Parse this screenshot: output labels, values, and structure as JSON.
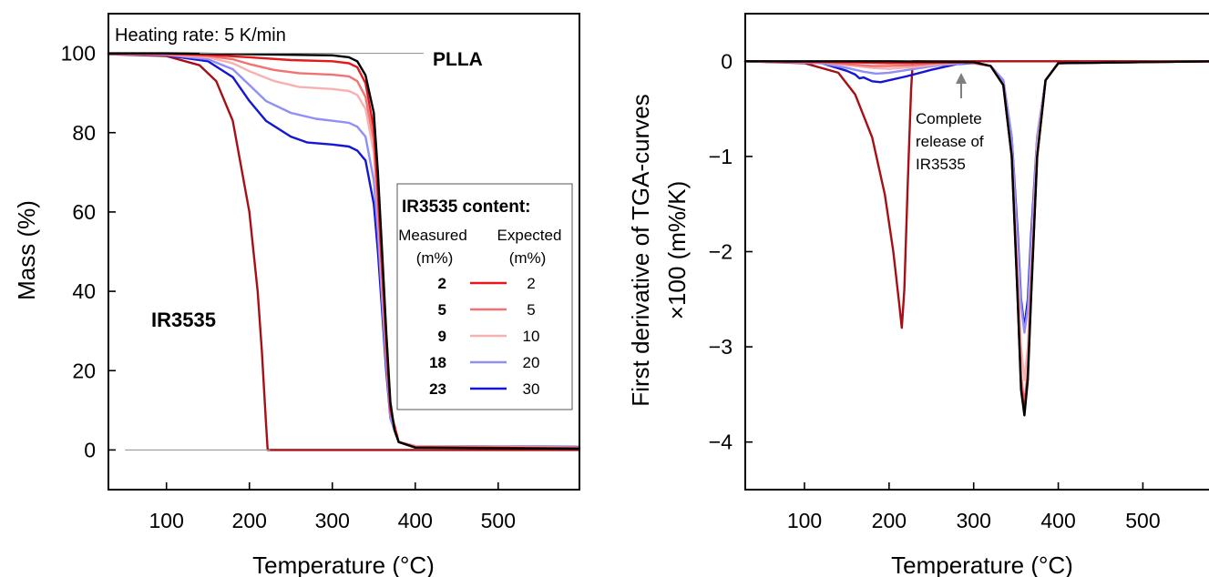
{
  "colors": {
    "PLLA": "#000000",
    "IR3535": "#a50f15",
    "2": "#e31a1c",
    "5": "#f27272",
    "9": "#f7b1b1",
    "18": "#8f8ff5",
    "23": "#1515d4",
    "guide": "#999999",
    "arrow": "#7f7f7f"
  },
  "chart_data": [
    {
      "type": "line",
      "title": "",
      "xlabel": "Temperature (°C)",
      "ylabel": "Mass (%)",
      "xlim": [
        30,
        598
      ],
      "ylim": [
        -10,
        110
      ],
      "xticks": [
        100,
        200,
        300,
        400,
        500
      ],
      "yticks": [
        0,
        20,
        40,
        60,
        80,
        100
      ],
      "annotations": {
        "heating_rate": "Heating rate: 5 K/min",
        "plla_label": "PLLA",
        "ir3535_label": "IR3535"
      },
      "legend": {
        "title": "IR3535 content:",
        "col1_header": "Measured",
        "col1_unit": "(m%)",
        "col2_header": "Expected",
        "col2_unit": "(m%)",
        "placement": "right",
        "entries": [
          {
            "key": "2",
            "measured": "2",
            "expected": "2"
          },
          {
            "key": "5",
            "measured": "5",
            "expected": "5"
          },
          {
            "key": "9",
            "measured": "9",
            "expected": "10"
          },
          {
            "key": "18",
            "measured": "18",
            "expected": "20"
          },
          {
            "key": "23",
            "measured": "23",
            "expected": "30"
          }
        ]
      },
      "series": [
        {
          "key": "IR3535",
          "x": [
            30,
            100,
            140,
            160,
            180,
            200,
            210,
            215,
            220,
            222,
            225,
            300,
            400,
            598
          ],
          "y": [
            99.8,
            99.3,
            97,
            93,
            83,
            60,
            40,
            25,
            7,
            0,
            0,
            0,
            0,
            0
          ]
        },
        {
          "key": "23",
          "x": [
            30,
            100,
            150,
            180,
            200,
            220,
            250,
            270,
            300,
            320,
            330,
            340,
            350,
            355,
            360,
            365,
            370,
            380,
            400,
            598
          ],
          "y": [
            99.8,
            99.5,
            98,
            94,
            88,
            83,
            79,
            77.5,
            77,
            76.5,
            75.5,
            73,
            62,
            50,
            35,
            20,
            8,
            2,
            1,
            0.8
          ]
        },
        {
          "key": "18",
          "x": [
            30,
            100,
            150,
            180,
            200,
            220,
            250,
            280,
            300,
            320,
            330,
            340,
            350,
            355,
            360,
            365,
            370,
            380,
            400,
            598
          ],
          "y": [
            99.8,
            99.6,
            98.5,
            96,
            92,
            88,
            85,
            83.5,
            83,
            82.5,
            81.5,
            79,
            68,
            55,
            38,
            22,
            8,
            2,
            1,
            0.7
          ]
        },
        {
          "key": "9",
          "x": [
            30,
            100,
            150,
            180,
            200,
            230,
            260,
            300,
            320,
            330,
            340,
            350,
            355,
            360,
            365,
            370,
            380,
            400,
            598
          ],
          "y": [
            99.9,
            99.7,
            99,
            97.5,
            95.5,
            93,
            91.5,
            91,
            90.5,
            89.5,
            86,
            75,
            60,
            42,
            25,
            10,
            2,
            1,
            0.6
          ]
        },
        {
          "key": "5",
          "x": [
            30,
            100,
            150,
            180,
            200,
            230,
            260,
            300,
            320,
            330,
            340,
            350,
            355,
            360,
            365,
            370,
            380,
            400,
            598
          ],
          "y": [
            99.9,
            99.8,
            99.3,
            98.5,
            97.3,
            95.8,
            95,
            94.6,
            94.2,
            93,
            89,
            78,
            62,
            44,
            26,
            10,
            2,
            0.8,
            0.5
          ]
        },
        {
          "key": "2",
          "x": [
            30,
            100,
            150,
            200,
            250,
            300,
            320,
            330,
            340,
            350,
            355,
            360,
            365,
            370,
            380,
            400,
            598
          ],
          "y": [
            99.9,
            99.9,
            99.6,
            99,
            98.3,
            98,
            97.5,
            96.5,
            92.5,
            81,
            65,
            46,
            27,
            10,
            2,
            0.7,
            0.4
          ]
        },
        {
          "key": "PLLA",
          "x": [
            30,
            100,
            200,
            300,
            320,
            330,
            340,
            350,
            355,
            360,
            365,
            370,
            375,
            380,
            400,
            598
          ],
          "y": [
            100,
            100,
            99.8,
            99.5,
            99,
            98,
            94.5,
            85,
            70,
            50,
            30,
            12,
            5,
            2,
            0.6,
            0.3
          ]
        }
      ]
    },
    {
      "type": "line",
      "title": "",
      "xlabel": "Temperature (°C)",
      "ylabel": "First derivative of TGA-curves",
      "ylabel2": "×100 (m%/K)",
      "xlim": [
        30,
        590
      ],
      "ylim": [
        -4.5,
        0.5
      ],
      "xticks": [
        100,
        200,
        300,
        400,
        500
      ],
      "yticks": [
        0,
        -1,
        -2,
        -3,
        -4
      ],
      "ytick_labels": [
        "0",
        "−1",
        "−2",
        "−3",
        "−4"
      ],
      "annotations": {
        "release_line1": "Complete",
        "release_line2": "release of",
        "release_line3": "IR3535"
      },
      "series": [
        {
          "key": "IR3535",
          "x": [
            30,
            100,
            140,
            160,
            180,
            195,
            205,
            212,
            215,
            218,
            222,
            226,
            228,
            300,
            400,
            590
          ],
          "y": [
            0,
            -0.02,
            -0.12,
            -0.35,
            -0.8,
            -1.4,
            -2,
            -2.55,
            -2.8,
            -2.4,
            -1.3,
            -0.3,
            0,
            0,
            0,
            0
          ]
        },
        {
          "key": "23",
          "x": [
            30,
            120,
            150,
            160,
            165,
            170,
            180,
            190,
            200,
            220,
            250,
            280,
            300,
            320,
            335,
            345,
            352,
            356,
            360,
            364,
            368,
            375,
            385,
            400,
            590
          ],
          "y": [
            0,
            -0.02,
            -0.1,
            -0.14,
            -0.18,
            -0.17,
            -0.21,
            -0.22,
            -0.2,
            -0.16,
            -0.09,
            -0.03,
            -0.02,
            -0.05,
            -0.2,
            -0.8,
            -1.8,
            -2.5,
            -2.8,
            -2.5,
            -1.8,
            -0.8,
            -0.2,
            -0.02,
            0
          ]
        },
        {
          "key": "18",
          "x": [
            30,
            120,
            150,
            170,
            185,
            200,
            230,
            260,
            290,
            300,
            320,
            335,
            345,
            352,
            356,
            360,
            364,
            368,
            375,
            385,
            400,
            590
          ],
          "y": [
            0,
            -0.02,
            -0.07,
            -0.11,
            -0.13,
            -0.12,
            -0.08,
            -0.04,
            -0.02,
            -0.02,
            -0.05,
            -0.2,
            -0.8,
            -1.9,
            -2.55,
            -2.85,
            -2.6,
            -1.9,
            -0.8,
            -0.2,
            -0.02,
            0
          ]
        },
        {
          "key": "9",
          "x": [
            30,
            120,
            150,
            180,
            200,
            230,
            260,
            290,
            300,
            320,
            335,
            345,
            352,
            356,
            360,
            364,
            368,
            375,
            385,
            400,
            590
          ],
          "y": [
            0,
            -0.01,
            -0.04,
            -0.07,
            -0.08,
            -0.06,
            -0.03,
            -0.01,
            -0.02,
            -0.05,
            -0.25,
            -1,
            -2.2,
            -3,
            -3.35,
            -3,
            -2.2,
            -0.9,
            -0.2,
            -0.02,
            0
          ]
        },
        {
          "key": "5",
          "x": [
            30,
            120,
            150,
            180,
            200,
            230,
            260,
            290,
            300,
            320,
            335,
            345,
            352,
            356,
            360,
            364,
            368,
            375,
            385,
            400,
            590
          ],
          "y": [
            0,
            -0.01,
            -0.03,
            -0.05,
            -0.05,
            -0.04,
            -0.02,
            -0.01,
            -0.02,
            -0.05,
            -0.25,
            -1,
            -2.4,
            -3.3,
            -3.6,
            -3.25,
            -2.4,
            -1,
            -0.2,
            -0.02,
            0
          ]
        },
        {
          "key": "2",
          "x": [
            30,
            150,
            200,
            300,
            320,
            335,
            345,
            352,
            356,
            360,
            364,
            368,
            375,
            385,
            400,
            590
          ],
          "y": [
            0,
            -0.01,
            -0.02,
            -0.01,
            -0.05,
            -0.25,
            -1,
            -2.5,
            -3.4,
            -3.68,
            -3.3,
            -2.4,
            -1,
            -0.2,
            -0.02,
            0
          ]
        },
        {
          "key": "PLLA",
          "x": [
            30,
            200,
            300,
            320,
            335,
            345,
            352,
            356,
            360,
            364,
            368,
            375,
            385,
            400,
            590
          ],
          "y": [
            0,
            0,
            -0.01,
            -0.05,
            -0.25,
            -1,
            -2.5,
            -3.45,
            -3.72,
            -3.35,
            -2.45,
            -1,
            -0.2,
            -0.02,
            0
          ]
        }
      ]
    }
  ]
}
